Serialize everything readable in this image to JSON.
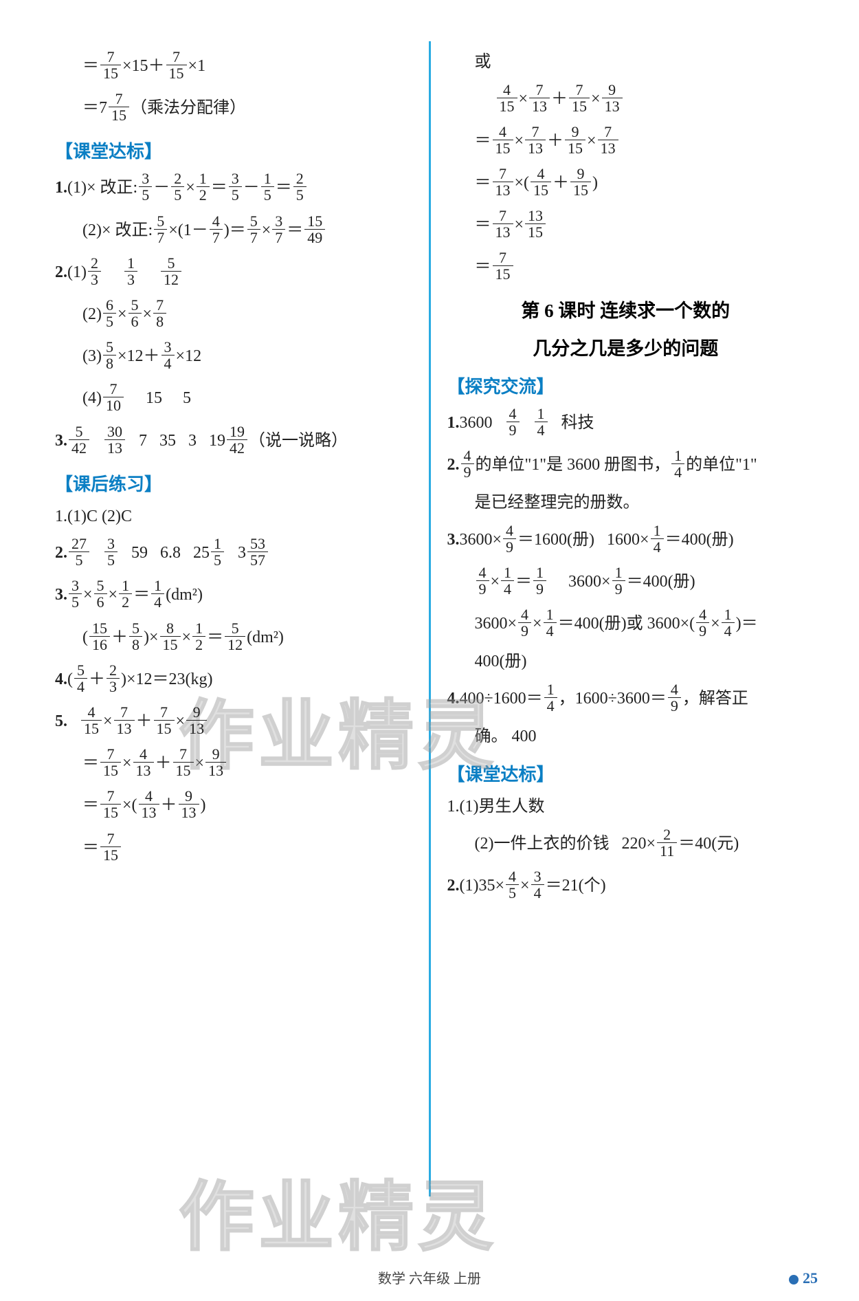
{
  "left": {
    "eq1a": "＝(7/15)×15＋(7/15)×1",
    "eq1b": "＝7(7/15)（乘法分配律）",
    "sec1": "【课堂达标】",
    "p1a": "1.(1)× 改正:(3/5)－(2/5)×(1/2)＝(3/5)－(1/5)＝(2/5)",
    "p1b": "(2)× 改正:(5/7)×(1－(4/7))＝(5/7)×(3/7)＝(15/49)",
    "p2a": "2.(1)(2/3) (1/3) (5/12)",
    "p2b": "(2)(6/5)×(5/6)×(7/8)",
    "p2c": "(3)(5/8)×12＋(3/4)×12",
    "p2d": "(4)(7/10) 15 5",
    "p3": "3.(5/42) (30/13) 7 35 3 19(19/42)（说一说略）",
    "sec2": "【课后练习】",
    "q1": "1.(1)C (2)C",
    "q2": "2.(27/5) (3/5) 59 6.8 25(1/5) 3(53/57)",
    "q3": "3.(3/5)×(5/6)×(1/2)＝(1/4)(dm²)",
    "q3b": "((15/16)＋(5/8))×(8/15)×(1/2)＝(5/12)(dm²)",
    "q4": "4.((5/4)＋(2/3))×12＝23(kg)",
    "q5a": "5.  (4/15)×(7/13)＋(7/15)×(9/13)",
    "q5b": "＝(7/15)×(4/13)＋(7/15)×(9/13)",
    "q5c": "＝(7/15)×((4/13)＋(9/13))",
    "q5d": "＝(7/15)"
  },
  "right": {
    "or": "或",
    "r1": "(4/15)×(7/13)＋(7/15)×(9/13)",
    "r2": "＝(4/15)×(7/13)＋(9/15)×(7/13)",
    "r3": "＝(7/13)×((4/15)＋(9/15))",
    "r4": "＝(7/13)×(13/15)",
    "r5": "＝(7/15)",
    "title1": "第 6 课时  连续求一个数的",
    "title2": "几分之几是多少的问题",
    "secA": "【探究交流】",
    "a1": "1.3600 (4/9) (1/4) 科技",
    "a2": "2.(4/9)的单位\"1\"是 3600 册图书，(1/4)的单位\"1\"",
    "a2b": "是已经整理完的册数。",
    "a3a": "3.3600×(4/9)＝1600(册)  1600×(1/4)＝400(册)",
    "a3b": "(4/9)×(1/4)＝(1/9)  3600×(1/9)＝400(册)",
    "a3c": "3600×(4/9)×(1/4)＝400(册)或 3600×((4/9)×(1/4))＝",
    "a3d": "400(册)",
    "a4": "4.400÷1600＝(1/4)，1600÷3600＝(4/9)，解答正",
    "a4b": "确。  400",
    "secB": "【课堂达标】",
    "b1": "1.(1)男生人数",
    "b2": "(2)一件上衣的价钱  220×(2/11)＝40(元)",
    "b3": "2.(1)35×(4/5)×(3/4)＝21(个)",
    "footer": "数学 六年级 上册",
    "pageNum": "25"
  },
  "watermark": "作业精灵"
}
